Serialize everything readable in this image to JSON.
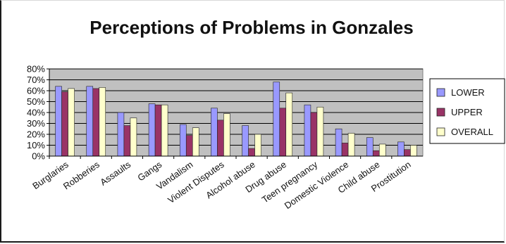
{
  "chart_data": {
    "type": "bar",
    "title": "Perceptions of Problems in Gonzales",
    "xlabel": "",
    "ylabel": "",
    "ylim": [
      0,
      80
    ],
    "yticks": [
      "0%",
      "10%",
      "20%",
      "30%",
      "40%",
      "50%",
      "60%",
      "70%",
      "80%"
    ],
    "grid": true,
    "legend_position": "right",
    "categories": [
      "Burglaries",
      "Robberies",
      "Assaults",
      "Gangs",
      "Vandalism",
      "Violent Disputes",
      "Alcohol abuse",
      "Drug abuse",
      "Teen pregnancy",
      "Domestic Violence",
      "Child abuse",
      "Prostitution"
    ],
    "series": [
      {
        "name": "LOWER",
        "color": "#9999ff",
        "values": [
          64,
          64,
          40,
          48,
          29,
          44,
          28,
          68,
          47,
          25,
          17,
          13
        ]
      },
      {
        "name": "UPPER",
        "color": "#993366",
        "values": [
          59,
          62,
          28,
          47,
          19,
          33,
          7,
          44,
          40,
          12,
          5,
          6
        ]
      },
      {
        "name": "OVERALL",
        "color": "#ffffcc",
        "values": [
          62,
          63,
          35,
          47,
          26,
          39,
          20,
          58,
          45,
          21,
          11,
          10
        ]
      }
    ]
  }
}
